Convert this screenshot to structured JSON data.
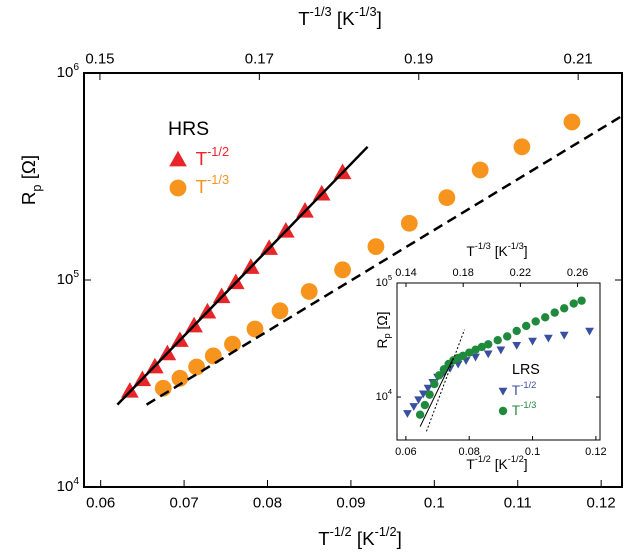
{
  "chart_data": [
    {
      "type": "scatter",
      "log_y": true,
      "annotation": "HRS",
      "xlabel": [
        "T",
        "-1/2",
        " [K",
        "-1/2",
        "]"
      ],
      "x2label": [
        "T",
        "-1/3",
        " [K",
        "-1/3",
        "]"
      ],
      "ylabel": [
        "R",
        "p",
        " [Ω]"
      ],
      "xlim": [
        0.058,
        0.1225
      ],
      "xticks": [
        0.06,
        0.07,
        0.08,
        0.09,
        {
          "value": 0.1,
          "label": "0.1"
        },
        0.11,
        0.12
      ],
      "x2lim": [
        0.148,
        0.2155
      ],
      "x2ticks": [
        0.15,
        0.17,
        0.19,
        0.21
      ],
      "ylim": [
        10000,
        1000000
      ],
      "yticks": [
        {
          "value": 10000,
          "label": "10",
          "sup": "4"
        },
        {
          "value": 100000,
          "label": "10",
          "sup": "5"
        },
        {
          "value": 1000000,
          "label": "10",
          "sup": "6"
        }
      ],
      "series": [
        {
          "name": "T",
          "name_sup": "-1/2",
          "marker": "triangle-up",
          "color": "#e8262a",
          "x": [
            0.0635,
            0.065,
            0.0665,
            0.068,
            0.0695,
            0.0712,
            0.0728,
            0.0745,
            0.0762,
            0.078,
            0.0802,
            0.0822,
            0.0845,
            0.0865,
            0.089
          ],
          "values": [
            29000,
            33000,
            38000,
            44000,
            51000,
            60000,
            70000,
            83000,
            97000,
            115000,
            142000,
            172000,
            215000,
            260000,
            330000
          ]
        },
        {
          "name": "T",
          "name_sup": "-1/3",
          "marker": "circle",
          "color": "#f7941d",
          "x": [
            0.0675,
            0.0695,
            0.0715,
            0.0735,
            0.0758,
            0.0785,
            0.0815,
            0.085,
            0.089,
            0.093,
            0.097,
            0.1015,
            0.1055,
            0.1105,
            0.1165
          ],
          "values": [
            30000,
            33500,
            38000,
            43000,
            49000,
            58000,
            71000,
            88000,
            112000,
            145000,
            188000,
            250000,
            340000,
            440000,
            580000
          ]
        },
        {
          "line": "solid",
          "color": "#000000",
          "x": [
            0.062,
            0.092
          ],
          "values": [
            25000,
            440000
          ]
        },
        {
          "line": "dashed",
          "color": "#000000",
          "x": [
            0.0655,
            0.1225
          ],
          "values": [
            25000,
            620000
          ]
        }
      ]
    },
    {
      "type": "scatter",
      "log_y": true,
      "annotation": "LRS",
      "xlabel": [
        "T",
        "-1/2",
        " [K",
        "-1/2",
        "]"
      ],
      "x2label": [
        "T",
        "-1/3",
        " [K",
        "-1/3",
        "]"
      ],
      "ylabel": [
        "R",
        "p",
        " [Ω]"
      ],
      "xlim": [
        0.0572,
        0.1213
      ],
      "xticks": [
        0.06,
        0.08,
        {
          "value": 0.1,
          "label": "0.1"
        },
        0.12
      ],
      "x2lim": [
        0.1337,
        0.2757
      ],
      "x2ticks": [
        0.14,
        0.18,
        0.22,
        0.26
      ],
      "ylim": [
        4200,
        100000
      ],
      "yticks": [
        {
          "value": 10000,
          "label": "10",
          "sup": "4"
        },
        {
          "value": 100000,
          "label": "10",
          "sup": "5"
        }
      ],
      "series": [
        {
          "name": "T",
          "name_sup": "-1/2",
          "marker": "triangle-down",
          "color": "#3a4fa0",
          "x": [
            0.0605,
            0.0625,
            0.064,
            0.0655,
            0.067,
            0.0685,
            0.07,
            0.072,
            0.074,
            0.0765,
            0.079,
            0.082,
            0.086,
            0.09,
            0.095,
            0.1,
            0.105,
            0.11,
            0.118
          ],
          "values": [
            7200,
            8300,
            9500,
            10700,
            12000,
            13500,
            15000,
            16500,
            18000,
            19500,
            21000,
            22500,
            24000,
            26000,
            28500,
            31000,
            33000,
            35000,
            38000
          ]
        },
        {
          "name": "T",
          "name_sup": "-1/3",
          "marker": "circle",
          "color": "#1f8a3c",
          "x": [
            0.0645,
            0.066,
            0.0675,
            0.069,
            0.0705,
            0.072,
            0.0735,
            0.075,
            0.0765,
            0.078,
            0.08,
            0.082,
            0.084,
            0.086,
            0.089,
            0.092,
            0.095,
            0.098,
            0.101,
            0.104,
            0.107,
            0.11,
            0.113,
            0.1155
          ],
          "values": [
            7000,
            8500,
            10500,
            13000,
            15500,
            17500,
            19500,
            21000,
            22000,
            23000,
            24500,
            26000,
            27500,
            29000,
            31500,
            34000,
            38000,
            42000,
            46000,
            50000,
            55000,
            60000,
            66000,
            70000
          ]
        },
        {
          "line": "solid",
          "color": "#000000",
          "x": [
            0.0645,
            0.075
          ],
          "values": [
            5500,
            22000
          ]
        },
        {
          "line": "dotted",
          "color": "#000000",
          "x": [
            0.0665,
            0.0785
          ],
          "values": [
            5000,
            39000
          ]
        }
      ]
    }
  ]
}
